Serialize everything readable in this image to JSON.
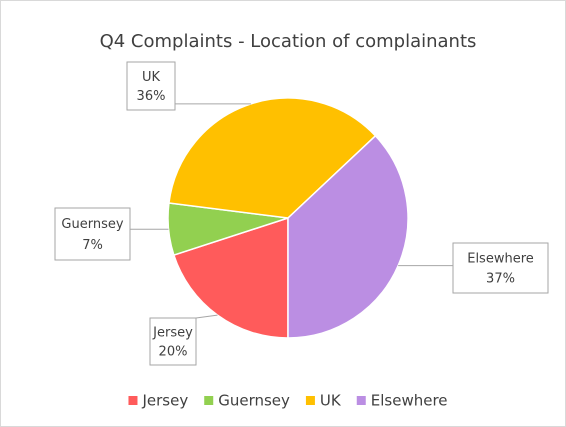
{
  "chart_data": {
    "type": "pie",
    "title": "Q4 Complaints - Location of complainants",
    "categories": [
      "Jersey",
      "Guernsey",
      "UK",
      "Elsewhere"
    ],
    "values": [
      20,
      7,
      36,
      37
    ],
    "value_labels": [
      "20%",
      "7%",
      "36%",
      "37%"
    ],
    "colors": [
      "#ff5b5b",
      "#92d050",
      "#ffc000",
      "#bb8ee3"
    ],
    "legend": "bottom"
  }
}
